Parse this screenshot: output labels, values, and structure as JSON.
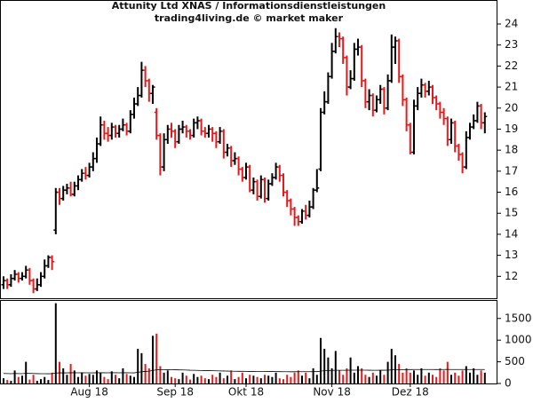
{
  "chart_data": [
    {
      "type": "ohlc",
      "title": "Attunity Ltd XNAS / Informationsdienstleistungen",
      "subtitle": "trading4living.de © market maker",
      "up_color": "#000000",
      "down_color": "#e8191a",
      "ylim": [
        11,
        25.14
      ],
      "yticks": [
        12,
        13,
        14,
        15,
        16,
        17,
        18,
        19,
        20,
        21,
        22,
        23,
        24
      ],
      "open": [
        11.6,
        11.8,
        11.6,
        11.9,
        12.1,
        11.9,
        12.0,
        12.3,
        11.8,
        11.4,
        11.6,
        12.0,
        12.5,
        12.9,
        14.2,
        16.0,
        15.7,
        16.1,
        16.2,
        15.9,
        16.3,
        16.6,
        16.9,
        16.8,
        17.2,
        17.6,
        18.3,
        19.2,
        18.8,
        18.7,
        19.1,
        18.8,
        19.0,
        19.2,
        18.9,
        19.7,
        20.2,
        20.6,
        21.8,
        21.3,
        20.7,
        19.8,
        18.7,
        17.2,
        18.5,
        19.0,
        18.9,
        18.4,
        19.0,
        19.1,
        18.9,
        18.7,
        19.3,
        19.4,
        18.9,
        18.8,
        19.0,
        18.8,
        18.4,
        18.9,
        17.9,
        18.1,
        17.5,
        17.6,
        17.1,
        16.7,
        17.2,
        16.1,
        16.5,
        15.8,
        16.6,
        15.7,
        16.4,
        16.7,
        17.2,
        16.8,
        16.0,
        15.6,
        15.2,
        14.8,
        14.6,
        15.1,
        14.9,
        15.3,
        16.1,
        17.1,
        19.8,
        20.3,
        21.5,
        22.7,
        23.4,
        23.3,
        22.4,
        21.0,
        21.4,
        22.8,
        22.9,
        21.3,
        20.3,
        20.6,
        19.9,
        20.4,
        20.9,
        20.0,
        21.3,
        22.9,
        23.2,
        21.5,
        20.4,
        19.2,
        17.9,
        20.1,
        20.7,
        21.1,
        20.8,
        21.0,
        20.5,
        20.2,
        19.8,
        19.5,
        18.5,
        19.3,
        18.2,
        17.8,
        17.2,
        18.6,
        19.1,
        19.4,
        20.1,
        19.3
      ],
      "high": [
        12.0,
        11.9,
        12.1,
        12.3,
        12.2,
        12.2,
        12.5,
        12.4,
        11.9,
        11.9,
        12.2,
        12.8,
        13.0,
        13.0,
        16.2,
        16.2,
        16.3,
        16.4,
        16.5,
        16.5,
        16.8,
        17.1,
        17.2,
        17.4,
        17.9,
        18.6,
        19.6,
        19.4,
        19.1,
        19.3,
        19.2,
        19.2,
        19.5,
        19.3,
        19.9,
        20.5,
        21.0,
        22.2,
        22.0,
        21.4,
        21.1,
        20.0,
        18.8,
        18.8,
        19.2,
        19.3,
        19.0,
        19.2,
        19.4,
        19.2,
        19.0,
        19.5,
        19.6,
        19.5,
        19.1,
        19.2,
        19.1,
        18.9,
        19.1,
        19.0,
        18.3,
        18.2,
        17.9,
        17.7,
        17.2,
        17.4,
        17.3,
        16.7,
        16.6,
        16.8,
        16.7,
        16.6,
        16.9,
        17.4,
        17.3,
        16.9,
        16.1,
        15.7,
        15.3,
        14.9,
        15.2,
        15.4,
        15.6,
        16.2,
        17.1,
        20.0,
        20.8,
        21.7,
        23.1,
        23.8,
        23.6,
        23.4,
        22.5,
        21.8,
        23.1,
        23.3,
        23.0,
        21.4,
        20.9,
        20.7,
        20.6,
        21.1,
        21.0,
        21.6,
        23.5,
        23.4,
        23.3,
        21.6,
        20.5,
        19.3,
        20.4,
        21.0,
        21.4,
        21.2,
        21.3,
        21.1,
        20.6,
        20.3,
        20.0,
        19.6,
        19.5,
        19.4,
        18.3,
        17.9,
        18.9,
        19.3,
        19.7,
        20.3,
        20.2,
        19.8
      ],
      "low": [
        11.4,
        11.4,
        11.5,
        11.8,
        11.7,
        11.8,
        11.9,
        11.6,
        11.2,
        11.3,
        11.5,
        11.9,
        12.4,
        12.3,
        14.0,
        15.4,
        15.6,
        15.9,
        15.8,
        15.8,
        16.1,
        16.5,
        16.6,
        16.7,
        17.0,
        17.4,
        18.2,
        18.5,
        18.4,
        18.5,
        18.6,
        18.6,
        18.9,
        18.7,
        18.8,
        19.5,
        20.1,
        20.5,
        21.0,
        20.3,
        20.2,
        18.5,
        16.8,
        17.0,
        18.3,
        18.6,
        18.1,
        18.3,
        18.8,
        18.6,
        18.5,
        18.6,
        19.0,
        18.7,
        18.6,
        18.6,
        18.4,
        18.1,
        18.3,
        17.6,
        17.7,
        17.2,
        17.3,
        16.8,
        16.5,
        16.6,
        16.0,
        15.9,
        15.6,
        15.7,
        15.5,
        15.6,
        16.3,
        16.6,
        16.5,
        15.8,
        15.3,
        14.9,
        14.4,
        14.4,
        14.5,
        14.7,
        14.8,
        15.2,
        16.0,
        17.0,
        19.7,
        20.2,
        21.4,
        22.6,
        22.9,
        22.1,
        20.6,
        20.9,
        21.3,
        22.5,
        21.0,
        20.0,
        19.9,
        19.6,
        19.8,
        20.2,
        19.7,
        19.9,
        21.2,
        22.1,
        21.2,
        20.1,
        18.9,
        17.8,
        17.8,
        19.9,
        20.5,
        20.5,
        20.6,
        20.2,
        19.9,
        19.5,
        19.2,
        18.2,
        18.3,
        17.9,
        17.5,
        16.9,
        17.1,
        18.5,
        19.0,
        19.3,
        19.0,
        18.8
      ],
      "close": [
        11.8,
        11.6,
        11.9,
        12.1,
        11.9,
        12.0,
        12.3,
        11.8,
        11.4,
        11.6,
        12.0,
        12.5,
        12.9,
        12.7,
        16.0,
        15.7,
        16.1,
        16.2,
        15.9,
        16.3,
        16.6,
        16.9,
        16.8,
        17.2,
        17.6,
        18.3,
        19.2,
        18.8,
        18.7,
        19.1,
        18.8,
        19.0,
        19.2,
        18.9,
        19.7,
        20.2,
        20.6,
        21.8,
        21.3,
        20.7,
        21.0,
        18.7,
        17.2,
        18.5,
        19.0,
        18.9,
        18.4,
        19.0,
        19.1,
        18.9,
        18.7,
        19.3,
        19.4,
        18.9,
        18.8,
        19.0,
        18.8,
        18.4,
        18.9,
        17.9,
        18.1,
        17.5,
        17.6,
        17.1,
        16.7,
        17.2,
        16.1,
        16.5,
        15.8,
        16.6,
        15.7,
        16.4,
        16.7,
        17.2,
        16.8,
        16.0,
        15.6,
        15.2,
        14.8,
        14.6,
        15.1,
        14.9,
        15.3,
        16.1,
        16.2,
        19.8,
        20.3,
        21.5,
        22.7,
        23.4,
        23.3,
        22.4,
        21.0,
        21.4,
        22.8,
        22.9,
        21.3,
        20.3,
        20.6,
        19.9,
        20.4,
        20.9,
        20.0,
        21.3,
        22.9,
        23.2,
        21.5,
        20.4,
        19.2,
        17.9,
        20.1,
        20.7,
        21.1,
        20.8,
        21.0,
        20.5,
        20.2,
        19.8,
        19.5,
        18.5,
        19.3,
        18.2,
        17.8,
        17.2,
        18.6,
        19.1,
        19.4,
        20.1,
        19.3,
        19.6
      ]
    },
    {
      "type": "volume",
      "categories": [
        null,
        null,
        null,
        null,
        null,
        null,
        null,
        null,
        null,
        null,
        null,
        null,
        null,
        null,
        null,
        null,
        null,
        null,
        null,
        null,
        null,
        null,
        null,
        "Aug 18",
        null,
        null,
        null,
        null,
        null,
        null,
        null,
        null,
        null,
        null,
        null,
        null,
        null,
        null,
        null,
        null,
        null,
        null,
        null,
        null,
        null,
        null,
        "Sep 18",
        null,
        null,
        null,
        null,
        null,
        null,
        null,
        null,
        null,
        null,
        null,
        null,
        null,
        null,
        null,
        null,
        null,
        null,
        "Okt 18",
        null,
        null,
        null,
        null,
        null,
        null,
        null,
        null,
        null,
        null,
        null,
        null,
        null,
        null,
        null,
        null,
        null,
        null,
        null,
        null,
        null,
        null,
        "Nov 18",
        null,
        null,
        null,
        null,
        null,
        null,
        null,
        null,
        null,
        null,
        null,
        null,
        null,
        null,
        null,
        null,
        null,
        null,
        null,
        null,
        "Dez 18",
        null,
        null,
        null,
        null,
        null,
        null,
        null,
        null,
        null,
        null,
        null,
        null,
        null,
        null,
        null,
        null,
        null,
        null,
        null,
        null
      ],
      "ylim": [
        0,
        1905
      ],
      "yticks": [
        0,
        500,
        1000,
        1500
      ],
      "values": [
        120,
        80,
        60,
        300,
        150,
        180,
        500,
        90,
        200,
        60,
        100,
        150,
        80,
        250,
        1850,
        500,
        350,
        200,
        450,
        300,
        150,
        250,
        180,
        220,
        200,
        300,
        250,
        150,
        100,
        280,
        200,
        120,
        350,
        220,
        180,
        150,
        800,
        700,
        450,
        350,
        1100,
        1150,
        400,
        250,
        300,
        150,
        120,
        100,
        250,
        180,
        90,
        220,
        150,
        180,
        120,
        100,
        200,
        150,
        250,
        120,
        180,
        300,
        100,
        150,
        250,
        120,
        200,
        180,
        150,
        120,
        200,
        180,
        150,
        250,
        120,
        100,
        200,
        150,
        250,
        300,
        180,
        250,
        120,
        350,
        200,
        1050,
        800,
        600,
        350,
        750,
        300,
        200,
        350,
        600,
        250,
        400,
        350,
        200,
        150,
        250,
        180,
        300,
        200,
        500,
        800,
        650,
        450,
        250,
        350,
        250,
        300,
        200,
        350,
        180,
        250,
        200,
        150,
        350,
        300,
        500,
        200,
        250,
        180,
        300,
        400,
        250,
        350,
        200,
        300,
        250
      ],
      "average": {
        "color": "#000000",
        "values": [
          230,
          228,
          225,
          230,
          228,
          226,
          235,
          232,
          230,
          227,
          225,
          226,
          224,
          228,
          240,
          245,
          246,
          245,
          247,
          248,
          246,
          247,
          246,
          246,
          245,
          247,
          248,
          247,
          246,
          248,
          247,
          246,
          248,
          247,
          246,
          245,
          258,
          270,
          278,
          285,
          300,
          315,
          318,
          318,
          320,
          318,
          316,
          314,
          312,
          310,
          306,
          304,
          302,
          300,
          298,
          296,
          294,
          292,
          290,
          288,
          286,
          284,
          282,
          280,
          280,
          279,
          278,
          278,
          277,
          276,
          276,
          275,
          275,
          274,
          273,
          272,
          271,
          270,
          270,
          271,
          272,
          272,
          272,
          273,
          273,
          285,
          295,
          300,
          302,
          305,
          305,
          304,
          305,
          307,
          307,
          308,
          308,
          307,
          306,
          305,
          305,
          306,
          306,
          308,
          314,
          318,
          320,
          320,
          321,
          321,
          322,
          322,
          323,
          322,
          322,
          322,
          321,
          322,
          322,
          324,
          323,
          323,
          322,
          322,
          323,
          322,
          322,
          322,
          322,
          322
        ]
      }
    }
  ]
}
